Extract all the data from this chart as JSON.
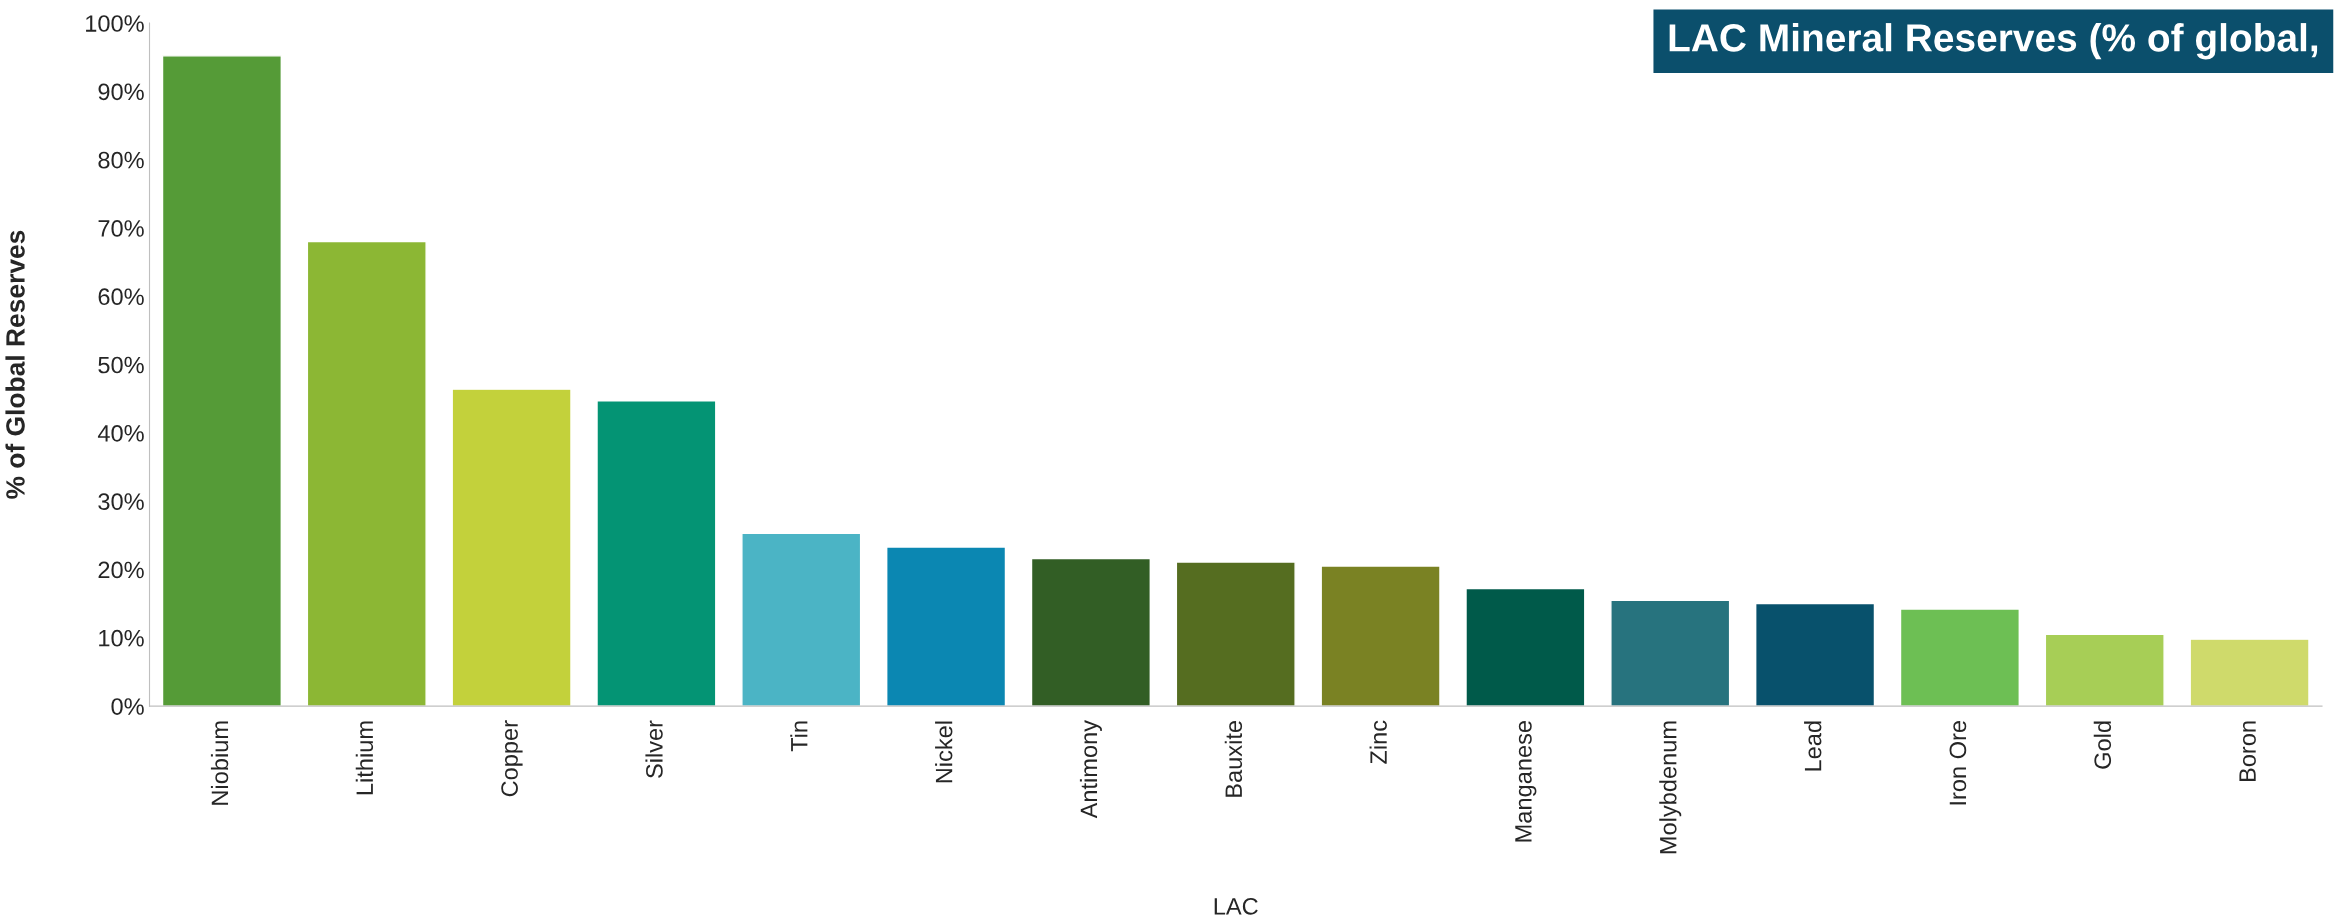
{
  "chart_data": {
    "type": "bar",
    "title": "LAC Mineral Reserves (% of global,",
    "xlabel": "LAC",
    "ylabel": "% of Global Reserves",
    "categories": [
      "Niobium",
      "Lithium",
      "Copper",
      "Silver",
      "Tin",
      "Nickel",
      "Antimony",
      "Bauxite",
      "Zinc",
      "Manganese",
      "Molybdenum",
      "Lead",
      "Iron Ore",
      "Gold",
      "Boron"
    ],
    "values": [
      95.2,
      68.0,
      46.4,
      44.7,
      25.3,
      23.3,
      21.6,
      21.1,
      20.5,
      17.2,
      15.5,
      15.0,
      14.2,
      10.5,
      9.8
    ],
    "colors": [
      "#559b37",
      "#8cb734",
      "#c3d13b",
      "#049474",
      "#4bb4c5",
      "#0b87b2",
      "#325e25",
      "#556d20",
      "#7a8223",
      "#005a4a",
      "#27737e",
      "#08516c",
      "#6dbf54",
      "#a7ce56",
      "#cfda6b"
    ],
    "ylim": [
      0,
      100
    ],
    "yticks": [
      {
        "value": 0,
        "label": "0%"
      },
      {
        "value": 10,
        "label": "10%"
      },
      {
        "value": 20,
        "label": "20%"
      },
      {
        "value": 30,
        "label": "30%"
      },
      {
        "value": 40,
        "label": "40%"
      },
      {
        "value": 50,
        "label": "50%"
      },
      {
        "value": 60,
        "label": "60%"
      },
      {
        "value": 70,
        "label": "70%"
      },
      {
        "value": 80,
        "label": "80%"
      },
      {
        "value": 90,
        "label": "90%"
      },
      {
        "value": 100,
        "label": "100%"
      }
    ],
    "grid": false
  }
}
